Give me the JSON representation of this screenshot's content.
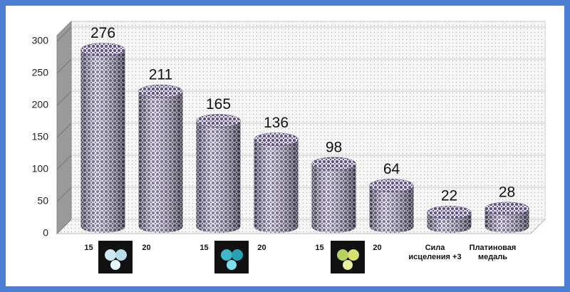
{
  "chart_data": {
    "type": "bar",
    "categories": [
      "15",
      "20",
      "15",
      "20",
      "15",
      "20",
      "Сила исцеления +3",
      "Платиновая медаль"
    ],
    "values": [
      276,
      211,
      165,
      136,
      98,
      64,
      22,
      28
    ],
    "color": "#5e5480",
    "ylim": [
      0,
      300
    ],
    "yticks": [
      0,
      50,
      100,
      150,
      200,
      250,
      300
    ],
    "grid": true
  }
}
